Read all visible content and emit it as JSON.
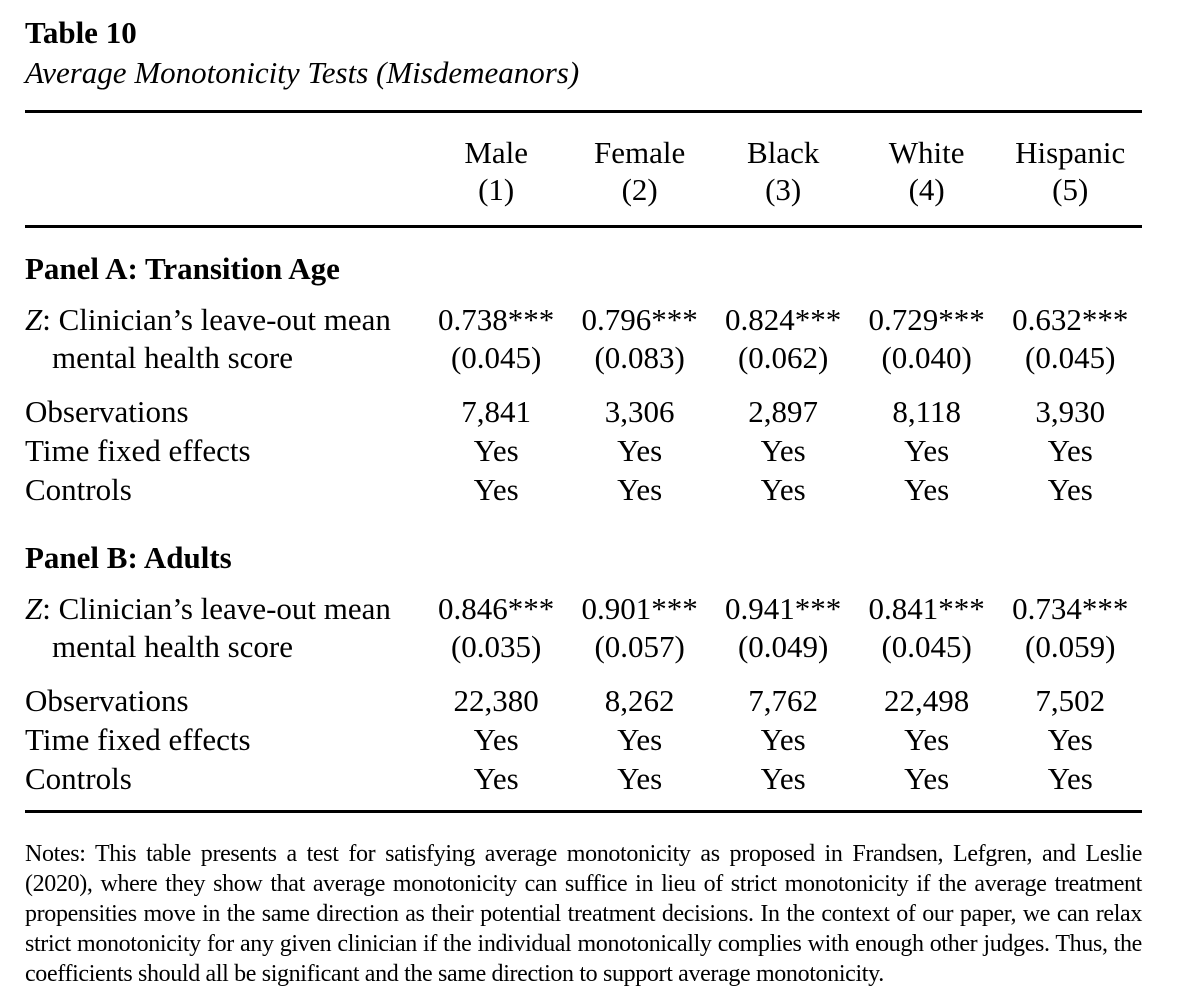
{
  "header": {
    "table_number": "Table 10",
    "table_title": "Average Monotonicity Tests (Misdemeanors)"
  },
  "columns": [
    {
      "label": "Male",
      "number": "(1)"
    },
    {
      "label": "Female",
      "number": "(2)"
    },
    {
      "label": "Black",
      "number": "(3)"
    },
    {
      "label": "White",
      "number": "(4)"
    },
    {
      "label": "Hispanic",
      "number": "(5)"
    }
  ],
  "row_labels": {
    "z_symbol": "Z",
    "z_rest": ": Clinician’s leave-out mean",
    "z_line2": "mental health score",
    "observations": "Observations",
    "time_fixed_effects": "Time fixed effects",
    "controls": "Controls"
  },
  "panels": [
    {
      "heading": "Panel A: Transition Age",
      "coefficients": [
        "0.738***",
        "0.796***",
        "0.824***",
        "0.729***",
        "0.632***"
      ],
      "std_errors": [
        "(0.045)",
        "(0.083)",
        "(0.062)",
        "(0.040)",
        "(0.045)"
      ],
      "observations": [
        "7,841",
        "3,306",
        "2,897",
        "8,118",
        "3,930"
      ],
      "time_fixed_effects": [
        "Yes",
        "Yes",
        "Yes",
        "Yes",
        "Yes"
      ],
      "controls": [
        "Yes",
        "Yes",
        "Yes",
        "Yes",
        "Yes"
      ]
    },
    {
      "heading": "Panel B: Adults",
      "coefficients": [
        "0.846***",
        "0.901***",
        "0.941***",
        "0.841***",
        "0.734***"
      ],
      "std_errors": [
        "(0.035)",
        "(0.057)",
        "(0.049)",
        "(0.045)",
        "(0.059)"
      ],
      "observations": [
        "22,380",
        "8,262",
        "7,762",
        "22,498",
        "7,502"
      ],
      "time_fixed_effects": [
        "Yes",
        "Yes",
        "Yes",
        "Yes",
        "Yes"
      ],
      "controls": [
        "Yes",
        "Yes",
        "Yes",
        "Yes",
        "Yes"
      ]
    }
  ],
  "notes": "Notes: This table presents a test for satisfying average monotonicity as proposed in Frandsen, Lefgren, and Leslie (2020), where they show that average monotonicity can suffice in lieu of strict monotonicity if the average treatment propensities move in the same direction as their potential treatment decisions. In the context of our paper, we can relax strict monotonicity for any given clinician if the individual monotonically complies with enough other judges. Thus, the coefficients should all be significant and the same direction to support average monotonicity."
}
